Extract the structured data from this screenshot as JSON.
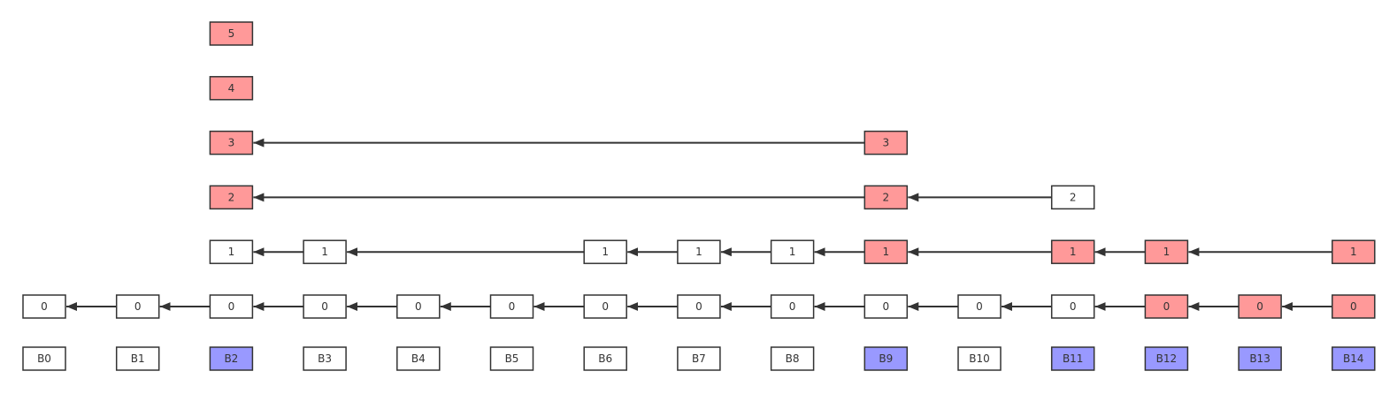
{
  "colors": {
    "plain_fill": "#ffffff",
    "highlight_fill": "#ff9999",
    "block_highlight_fill": "#9999ff",
    "stroke": "#333333",
    "edge": "#333333"
  },
  "blocks": [
    {
      "label": "B0",
      "highlight": false
    },
    {
      "label": "B1",
      "highlight": false
    },
    {
      "label": "B2",
      "highlight": true
    },
    {
      "label": "B3",
      "highlight": false
    },
    {
      "label": "B4",
      "highlight": false
    },
    {
      "label": "B5",
      "highlight": false
    },
    {
      "label": "B6",
      "highlight": false
    },
    {
      "label": "B7",
      "highlight": false
    },
    {
      "label": "B8",
      "highlight": false
    },
    {
      "label": "B9",
      "highlight": true
    },
    {
      "label": "B10",
      "highlight": false
    },
    {
      "label": "B11",
      "highlight": true
    },
    {
      "label": "B12",
      "highlight": true
    },
    {
      "label": "B13",
      "highlight": true
    },
    {
      "label": "B14",
      "highlight": true
    }
  ],
  "levels": [
    {
      "level": 0,
      "nodes": [
        {
          "block": 0,
          "label": "0",
          "highlight": false
        },
        {
          "block": 1,
          "label": "0",
          "highlight": false
        },
        {
          "block": 2,
          "label": "0",
          "highlight": false
        },
        {
          "block": 3,
          "label": "0",
          "highlight": false
        },
        {
          "block": 4,
          "label": "0",
          "highlight": false
        },
        {
          "block": 5,
          "label": "0",
          "highlight": false
        },
        {
          "block": 6,
          "label": "0",
          "highlight": false
        },
        {
          "block": 7,
          "label": "0",
          "highlight": false
        },
        {
          "block": 8,
          "label": "0",
          "highlight": false
        },
        {
          "block": 9,
          "label": "0",
          "highlight": false
        },
        {
          "block": 10,
          "label": "0",
          "highlight": false
        },
        {
          "block": 11,
          "label": "0",
          "highlight": false
        },
        {
          "block": 12,
          "label": "0",
          "highlight": true
        },
        {
          "block": 13,
          "label": "0",
          "highlight": true
        },
        {
          "block": 14,
          "label": "0",
          "highlight": true
        }
      ]
    },
    {
      "level": 1,
      "nodes": [
        {
          "block": 2,
          "label": "1",
          "highlight": false
        },
        {
          "block": 3,
          "label": "1",
          "highlight": false
        },
        {
          "block": 6,
          "label": "1",
          "highlight": false
        },
        {
          "block": 7,
          "label": "1",
          "highlight": false
        },
        {
          "block": 8,
          "label": "1",
          "highlight": false
        },
        {
          "block": 9,
          "label": "1",
          "highlight": true
        },
        {
          "block": 11,
          "label": "1",
          "highlight": true
        },
        {
          "block": 12,
          "label": "1",
          "highlight": true
        },
        {
          "block": 14,
          "label": "1",
          "highlight": true
        }
      ]
    },
    {
      "level": 2,
      "nodes": [
        {
          "block": 2,
          "label": "2",
          "highlight": true
        },
        {
          "block": 9,
          "label": "2",
          "highlight": true
        },
        {
          "block": 11,
          "label": "2",
          "highlight": false
        }
      ]
    },
    {
      "level": 3,
      "nodes": [
        {
          "block": 2,
          "label": "3",
          "highlight": true
        },
        {
          "block": 9,
          "label": "3",
          "highlight": true
        }
      ]
    },
    {
      "level": 4,
      "nodes": [
        {
          "block": 2,
          "label": "4",
          "highlight": true
        }
      ]
    },
    {
      "level": 5,
      "nodes": [
        {
          "block": 2,
          "label": "5",
          "highlight": true
        }
      ]
    }
  ]
}
